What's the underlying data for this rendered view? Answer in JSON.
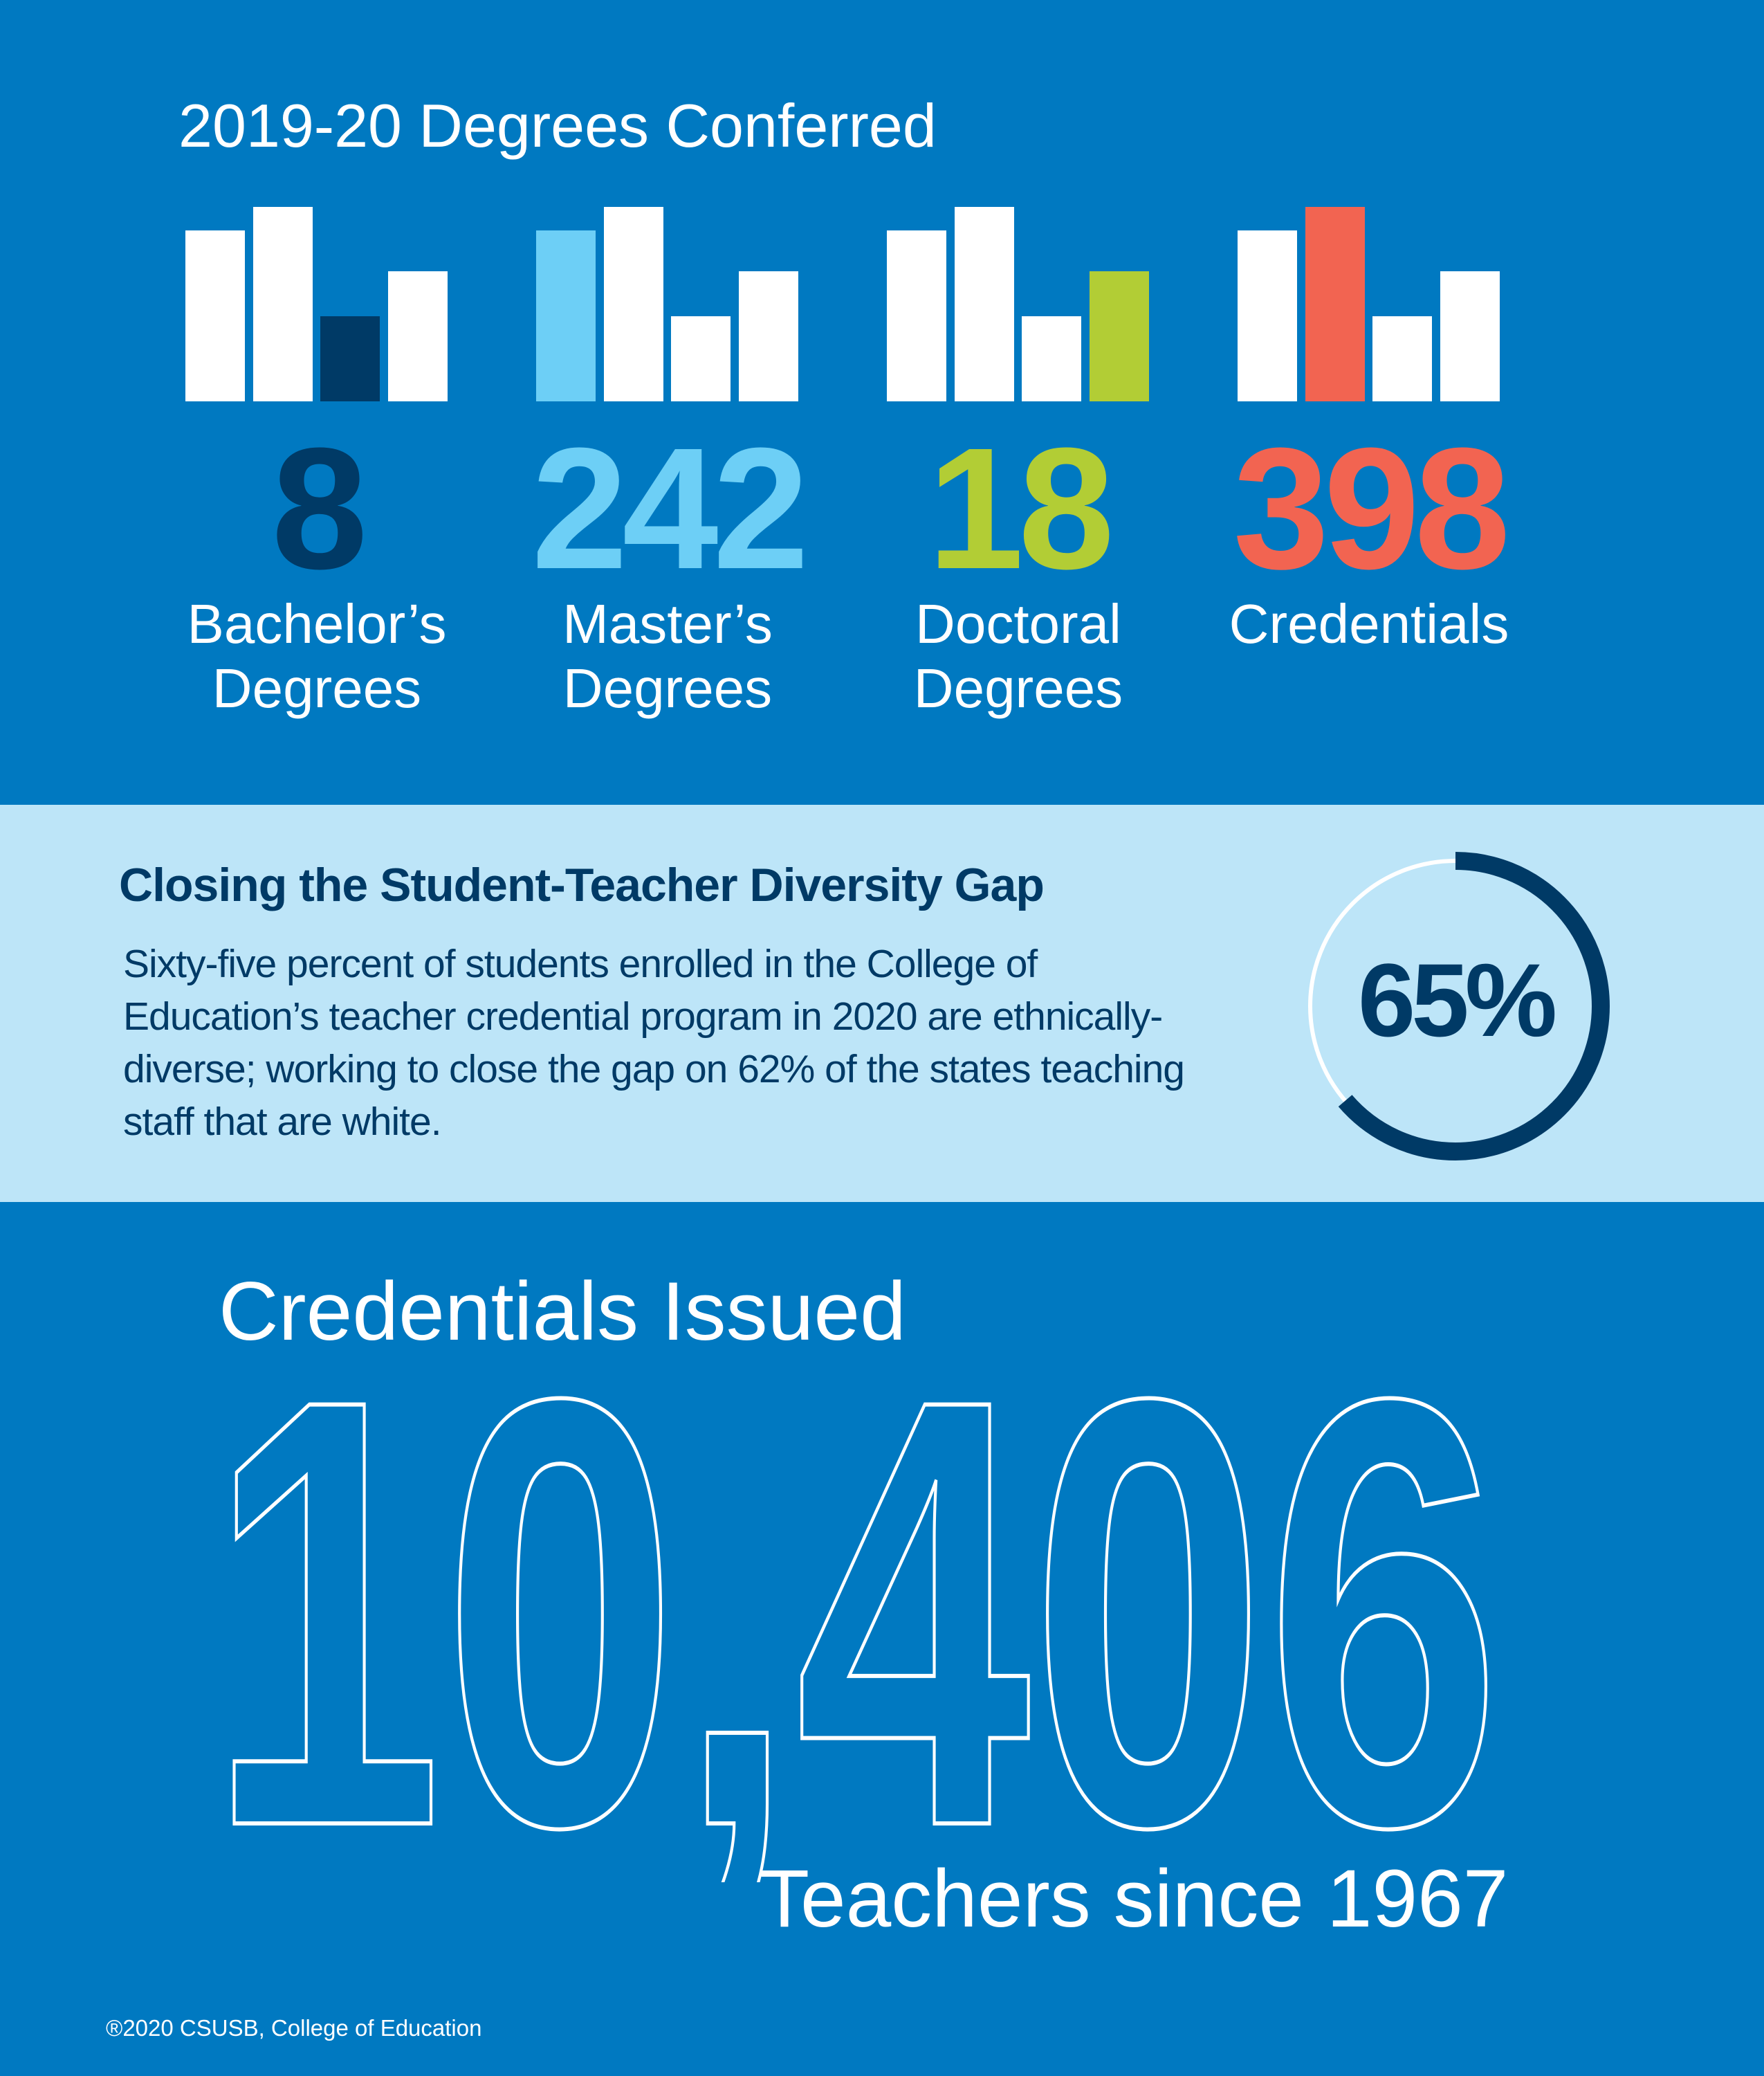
{
  "title": "2019-20 Degrees Conferred",
  "colors": {
    "background": "#0079c1",
    "navy": "#003a66",
    "light_blue": "#6dcff6",
    "green": "#b2cd35",
    "coral": "#f26451",
    "band": "#bde5f8",
    "bar_default": "#ffffff"
  },
  "degrees": [
    {
      "value": "8",
      "label_line1": "Bachelor’s",
      "label_line2": "Degrees",
      "color": "#003a66",
      "highlight_bar": 2
    },
    {
      "value": "242",
      "label_line1": "Master’s",
      "label_line2": "Degrees",
      "color": "#6dcff6",
      "highlight_bar": 0
    },
    {
      "value": "18",
      "label_line1": "Doctoral",
      "label_line2": "Degrees",
      "color": "#b2cd35",
      "highlight_bar": 3
    },
    {
      "value": "398",
      "label_line1": "Credentials",
      "label_line2": "",
      "color": "#f26451",
      "highlight_bar": 1
    }
  ],
  "diversity": {
    "heading": "Closing the Student-Teacher Diversity Gap",
    "paragraph": "Sixty-five percent of students enrolled in the College of Education’s teacher credential program in 2020 are ethnically-diverse; working to close the gap on 62% of the states teaching staff that are white.",
    "percent_label": "65%",
    "percent_value": 65
  },
  "credentials": {
    "title": "Credentials Issued",
    "total": "10,406",
    "subtitle": "Teachers since 1967"
  },
  "footer": "®2020 CSUSB, College of Education"
}
